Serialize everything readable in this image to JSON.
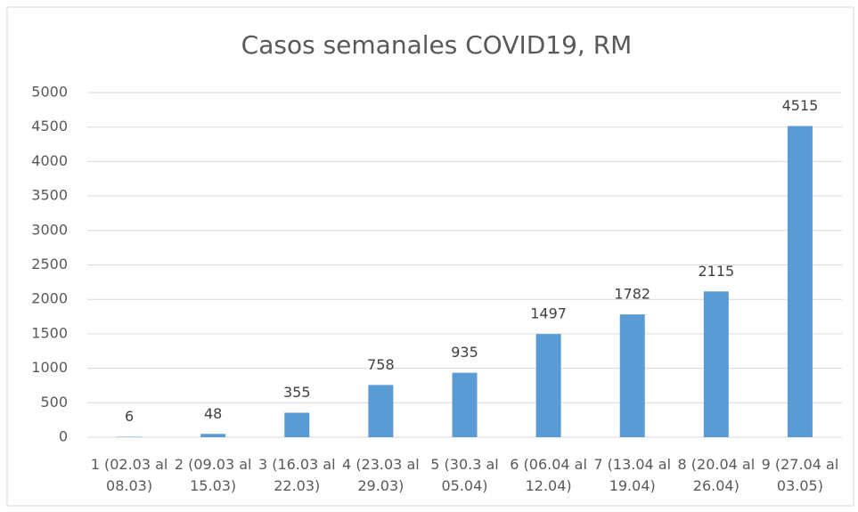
{
  "chart_data": {
    "type": "bar",
    "title": "Casos semanales COVID19, RM",
    "categories": [
      "1 (02.03 al 08.03)",
      "2 (09.03 al 15.03)",
      "3 (16.03 al 22.03)",
      "4 (23.03 al 29.03)",
      "5 (30.3 al 05.04)",
      "6 (06.04 al 12.04)",
      "7 (13.04 al 19.04)",
      "8 (20.04 al 26.04)",
      "9 (27.04 al 03.05)"
    ],
    "values": [
      6,
      48,
      355,
      758,
      935,
      1497,
      1782,
      2115,
      4515
    ],
    "color": "#5b9bd5",
    "ylim": [
      0,
      5000
    ],
    "yticks": [
      0,
      500,
      1000,
      1500,
      2000,
      2500,
      3000,
      3500,
      4000,
      4500,
      5000
    ],
    "grid": true
  }
}
